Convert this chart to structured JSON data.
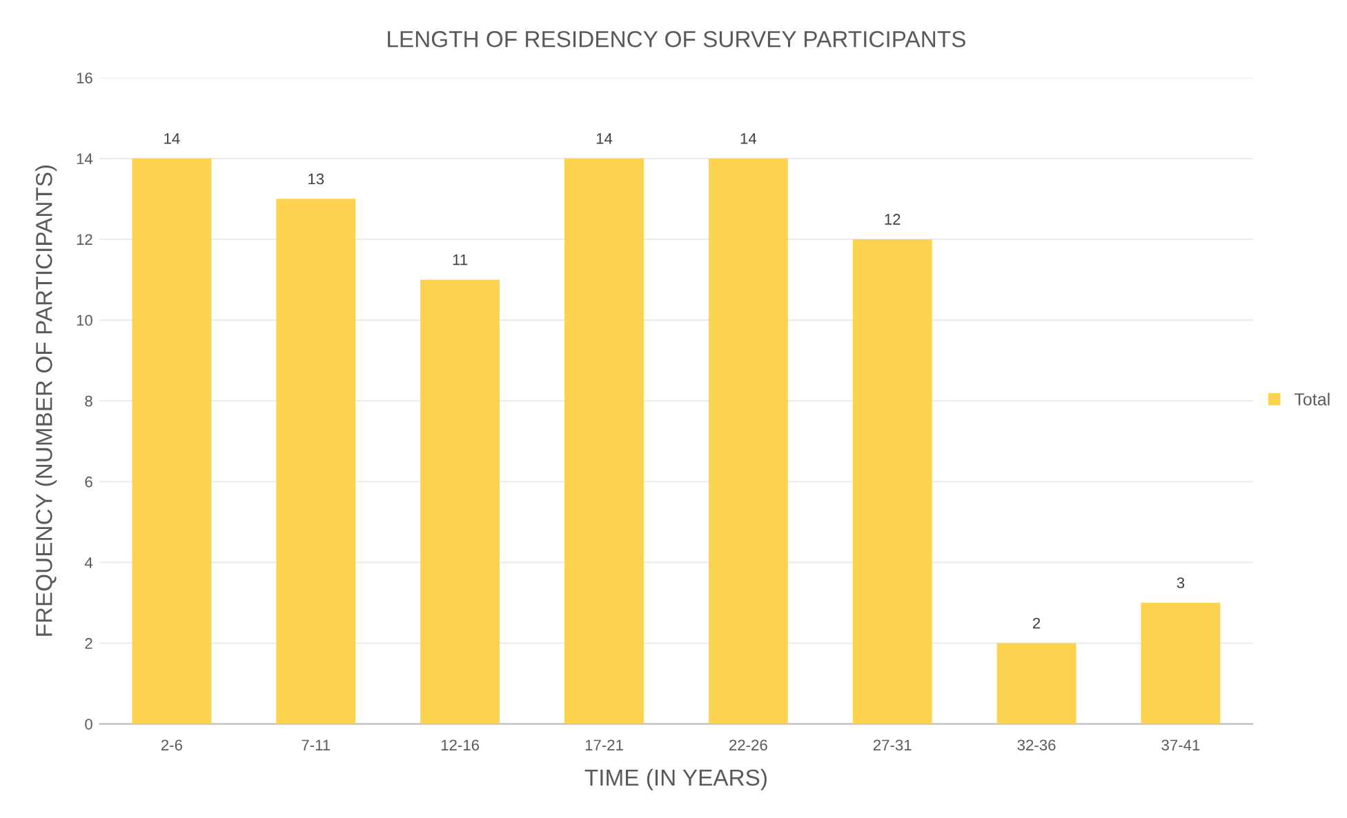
{
  "chart_data": {
    "type": "bar",
    "title": "LENGTH OF RESIDENCY OF SURVEY PARTICIPANTS",
    "xlabel": "TIME (IN YEARS)",
    "ylabel": "FREQUENCY (NUMBER OF PARTICIPANTS)",
    "categories": [
      "2-6",
      "7-11",
      "12-16",
      "17-21",
      "22-26",
      "27-31",
      "32-36",
      "37-41"
    ],
    "series": [
      {
        "name": "Total",
        "color": "#fdd24e",
        "values": [
          14,
          13,
          11,
          14,
          14,
          12,
          2,
          3
        ]
      }
    ],
    "ylim": [
      0,
      16
    ],
    "yticks": [
      0,
      2,
      4,
      6,
      8,
      10,
      12,
      14,
      16
    ],
    "grid": "y",
    "legend": "right",
    "data_labels": true
  }
}
